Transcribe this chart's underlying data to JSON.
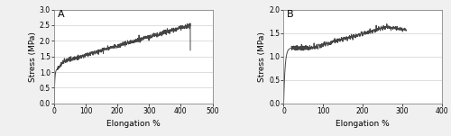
{
  "panel_A": {
    "label": "A",
    "xlabel": "Elongation %",
    "ylabel": "Stress (MPa)",
    "xlim": [
      0,
      500
    ],
    "ylim": [
      0,
      3
    ],
    "xticks": [
      0,
      100,
      200,
      300,
      400,
      500
    ],
    "yticks": [
      0,
      0.5,
      1.0,
      1.5,
      2.0,
      2.5,
      3.0
    ],
    "curve_color": "#444444",
    "background_color": "#ffffff",
    "grid_color": "#d0d0d0"
  },
  "panel_B": {
    "label": "B",
    "xlabel": "Elongation %",
    "ylabel": "Stress (MPa)",
    "xlim": [
      0,
      400
    ],
    "ylim": [
      0,
      2
    ],
    "xticks": [
      0,
      100,
      200,
      300,
      400
    ],
    "yticks": [
      0,
      0.5,
      1.0,
      1.5,
      2.0
    ],
    "curve_color": "#444444",
    "background_color": "#ffffff",
    "grid_color": "#d0d0d0"
  },
  "figure_background": "#f0f0f0",
  "font_size_label": 6.5,
  "font_size_tick": 5.5,
  "font_size_panel_label": 8,
  "line_width": 0.7
}
